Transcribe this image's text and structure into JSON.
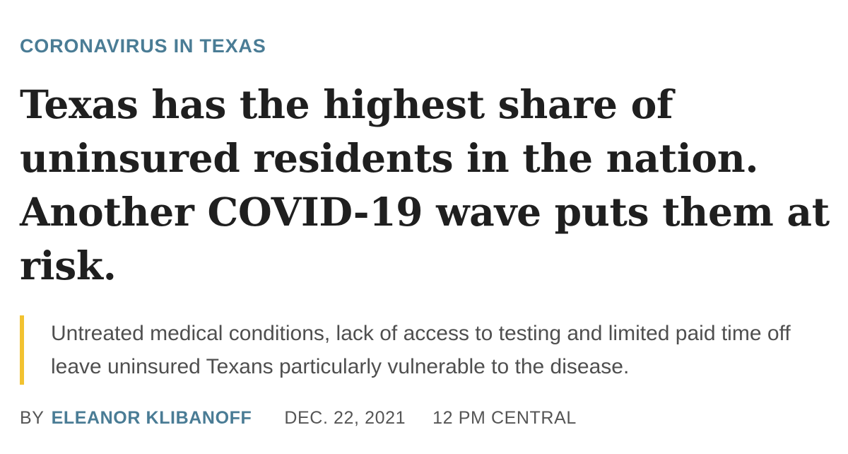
{
  "kicker": "CORONAVIRUS IN TEXAS",
  "headline": "Texas has the highest share of uninsured residents in the nation. Another COVID-19 wave puts them at risk.",
  "dek": "Untreated medical conditions, lack of access to testing and limited paid time off leave uninsured Texans particularly vulnerable to the disease.",
  "byline": {
    "by_label": "BY",
    "author": "ELEANOR KLIBANOFF",
    "date": "DEC. 22, 2021",
    "time": "12 PM CENTRAL"
  },
  "colors": {
    "kicker": "#4a7c95",
    "headline": "#1f1f1f",
    "dek_text": "#4f4f4f",
    "dek_rule": "#f2c230",
    "byline": "#555555"
  }
}
